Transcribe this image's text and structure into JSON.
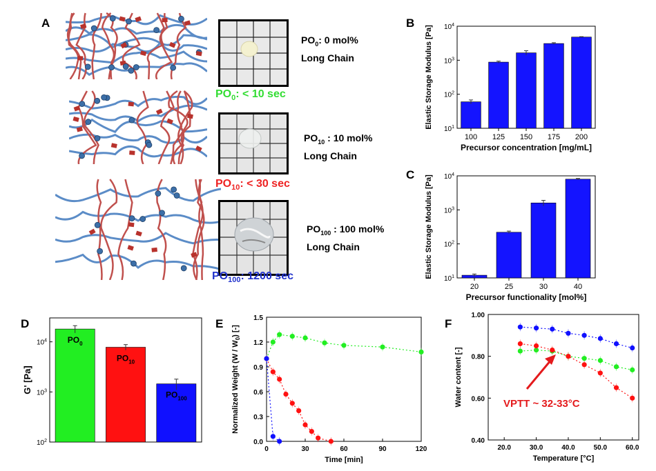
{
  "panels": {
    "a": "A",
    "b": "B",
    "c": "C",
    "d": "D",
    "e": "E",
    "f": "F"
  },
  "panel_a": {
    "rows": [
      {
        "name_main": "PO",
        "name_sub": "0",
        "caption_rest": ": 0 mol%",
        "chain": "Long Chain",
        "time_main": "PO",
        "time_sub": "0",
        "time_rest": ": < 10 sec",
        "time_color": "#33dd33"
      },
      {
        "name_main": "PO",
        "name_sub": "10",
        "caption_rest": " : 10 mol%",
        "chain": "Long Chain",
        "time_main": "PO",
        "time_sub": "10",
        "time_rest": ": < 30 sec",
        "time_color": "#ee2222"
      },
      {
        "name_main": "PO",
        "name_sub": "100",
        "caption_rest": " : 100 mol%",
        "chain": "Long Chain",
        "time_main": "PO",
        "time_sub": "100",
        "time_rest": ": 1200 sec",
        "time_color": "#2233cc"
      }
    ]
  },
  "colors": {
    "bar_blue": "#1414ff",
    "green": "#22ee22",
    "red": "#ff1111",
    "blue": "#1010ff",
    "chain_blue": "#5b8cc7",
    "chain_red": "#c0504d"
  },
  "chart_data": [
    {
      "id": "B",
      "type": "bar",
      "scale": "log",
      "categories": [
        "100",
        "125",
        "150",
        "175",
        "200"
      ],
      "values": [
        60,
        880,
        1650,
        3100,
        4800
      ],
      "errors": [
        8,
        60,
        250,
        180,
        120
      ],
      "xlabel": "Precursor concentration [mg/mL]",
      "ylabel": "Elastic Storage Modulus [Pa]",
      "ylim": [
        10,
        10000
      ],
      "yticks": [
        {
          "base": "10",
          "exp": "1"
        },
        {
          "base": "10",
          "exp": "2"
        },
        {
          "base": "10",
          "exp": "3"
        },
        {
          "base": "10",
          "exp": "4"
        }
      ]
    },
    {
      "id": "C",
      "type": "bar",
      "scale": "log",
      "categories": [
        "20",
        "25",
        "30",
        "40"
      ],
      "values": [
        12,
        220,
        1600,
        8000
      ],
      "errors": [
        1,
        18,
        300,
        400
      ],
      "xlabel": "Precursor functionality [mol%]",
      "ylabel": "Elastic Storage Modulus [Pa]",
      "ylim": [
        10,
        10000
      ],
      "yticks": [
        {
          "base": "10",
          "exp": "1"
        },
        {
          "base": "10",
          "exp": "2"
        },
        {
          "base": "10",
          "exp": "3"
        },
        {
          "base": "10",
          "exp": "4"
        }
      ]
    },
    {
      "id": "D",
      "type": "bar",
      "scale": "log",
      "categories": [
        "PO0",
        "PO10",
        "PO100"
      ],
      "labels": [
        {
          "main": "PO",
          "sub": "0"
        },
        {
          "main": "PO",
          "sub": "10"
        },
        {
          "main": "PO",
          "sub": "100"
        }
      ],
      "values": [
        18000,
        7800,
        1450
      ],
      "errors": [
        3000,
        1000,
        350
      ],
      "ylabel": "G' [Pa]",
      "ylim": [
        100,
        30000
      ],
      "yticks": [
        {
          "base": "10",
          "exp": "2"
        },
        {
          "base": "10",
          "exp": "3"
        },
        {
          "base": "10",
          "exp": "4"
        }
      ]
    },
    {
      "id": "E",
      "type": "scatter",
      "xlabel": "Time [min]",
      "ylabel": "Normalized Weight (W / W",
      "ylabel_sub": "0",
      "ylabel_tail": ") [-]",
      "xlim": [
        0,
        120
      ],
      "ylim": [
        0,
        1.5
      ],
      "xticks": [
        "0",
        "30",
        "60",
        "90",
        "120"
      ],
      "yticks": [
        "0.0",
        "0.3",
        "0.6",
        "0.9",
        "1.2",
        "1.5"
      ],
      "series": [
        {
          "name": "PO0",
          "x": [
            0,
            5,
            10,
            20,
            30,
            45,
            60,
            90,
            120
          ],
          "y": [
            1.0,
            1.2,
            1.29,
            1.27,
            1.25,
            1.19,
            1.16,
            1.14,
            1.08
          ]
        },
        {
          "name": "PO10",
          "x": [
            0,
            5,
            10,
            15,
            20,
            25,
            30,
            35,
            40,
            50
          ],
          "y": [
            1.0,
            0.84,
            0.75,
            0.57,
            0.46,
            0.37,
            0.2,
            0.12,
            0.04,
            0.0
          ]
        },
        {
          "name": "PO100",
          "x": [
            0,
            5,
            10
          ],
          "y": [
            1.0,
            0.06,
            0.0
          ]
        }
      ]
    },
    {
      "id": "F",
      "type": "scatter",
      "xlabel": "Temperature [°C]",
      "ylabel": "Water content [-]",
      "xlim": [
        15,
        62
      ],
      "ylim": [
        0.4,
        1.0
      ],
      "xticks": [
        "20.0",
        "30.0",
        "40.0",
        "50.0",
        "60.0"
      ],
      "yticks": [
        "0.40",
        "0.60",
        "0.80",
        "1.00"
      ],
      "series": [
        {
          "name": "PO0",
          "x": [
            25,
            30,
            35,
            40,
            45,
            50,
            55,
            60
          ],
          "y": [
            0.825,
            0.83,
            0.825,
            0.8,
            0.79,
            0.78,
            0.75,
            0.735
          ]
        },
        {
          "name": "PO10",
          "x": [
            25,
            30,
            35,
            40,
            45,
            50,
            55,
            60
          ],
          "y": [
            0.86,
            0.85,
            0.83,
            0.8,
            0.76,
            0.72,
            0.65,
            0.6
          ]
        },
        {
          "name": "PO100",
          "x": [
            25,
            30,
            35,
            40,
            45,
            50,
            55,
            60
          ],
          "y": [
            0.94,
            0.935,
            0.93,
            0.91,
            0.9,
            0.885,
            0.86,
            0.84
          ]
        }
      ],
      "annotation": "VPTT ~ 32-33°C"
    }
  ]
}
